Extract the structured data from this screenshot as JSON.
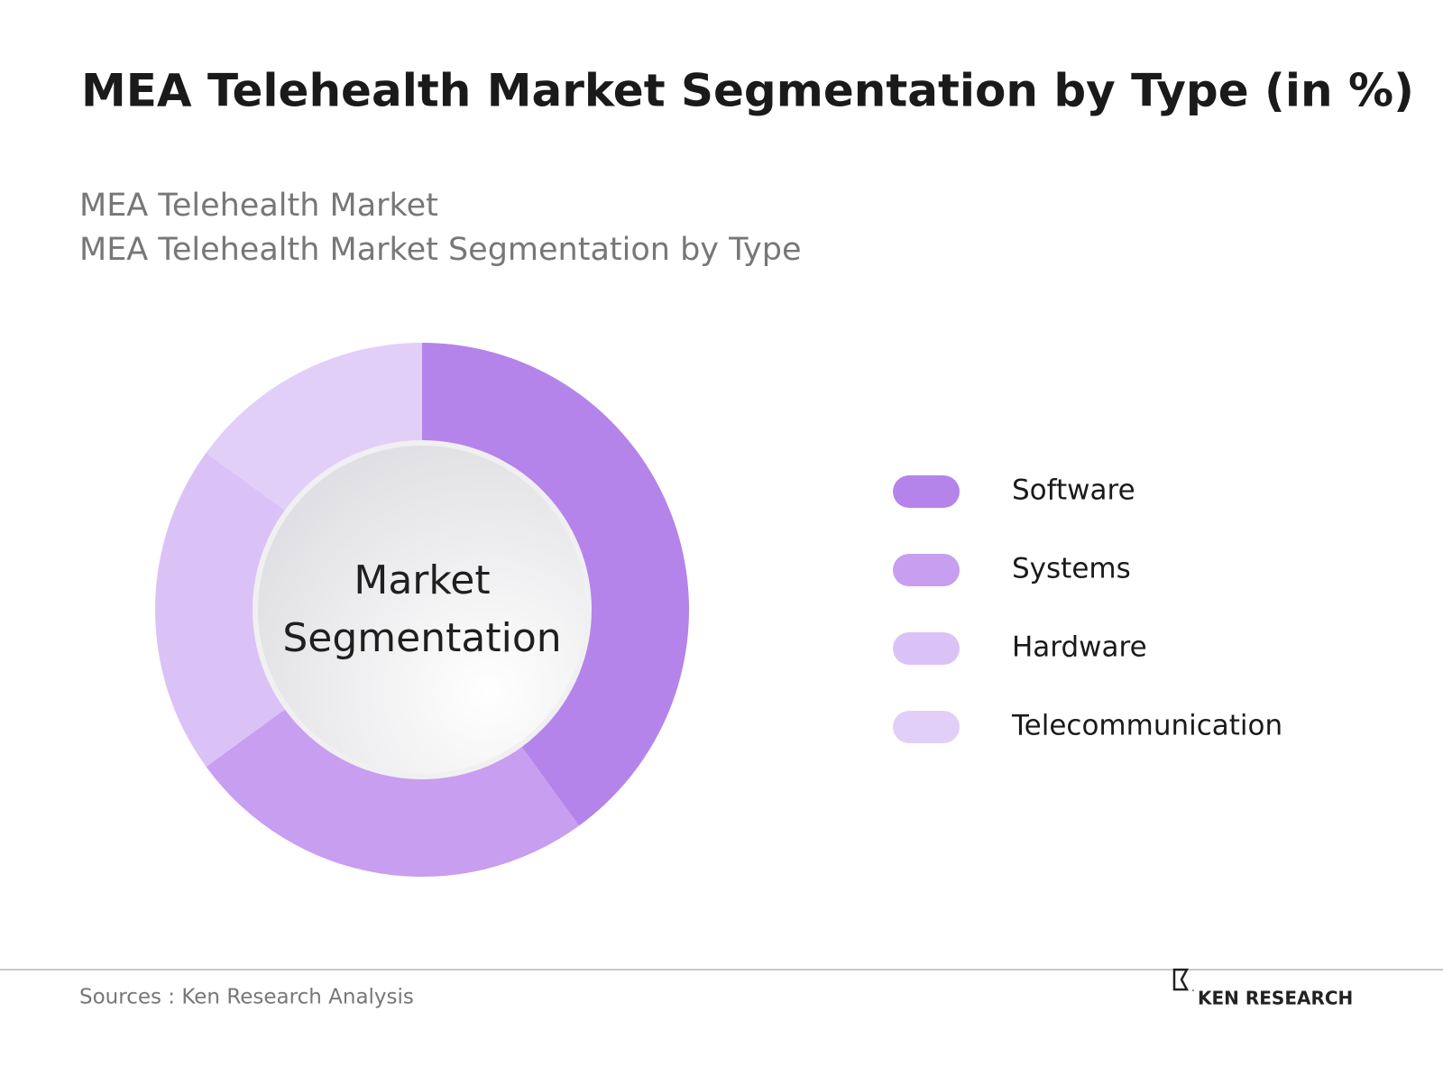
{
  "chart_data": {
    "type": "donut",
    "title": "MEA Telehealth Market Segmentation by Type  (in %)",
    "subtitles": [
      "MEA Telehealth Market",
      "MEA Telehealth Market Segmentation by Type"
    ],
    "center_label": [
      "Market",
      "Segmentation"
    ],
    "categories": [
      "Software",
      "Systems",
      "Hardware",
      "Telecommunication"
    ],
    "values": [
      40,
      25,
      20,
      15
    ],
    "colors": [
      "#b484ea",
      "#c79ef0",
      "#dbc2f6",
      "#e2cff8"
    ],
    "source": "Sources : Ken Research Analysis",
    "brand": "KEN RESEARCH"
  }
}
